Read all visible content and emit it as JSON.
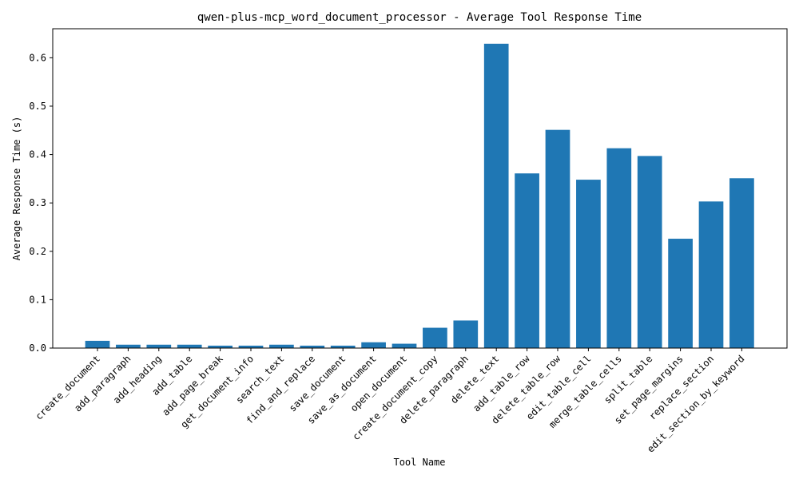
{
  "chart_data": {
    "type": "bar",
    "title": "qwen-plus-mcp_word_document_processor - Average Tool Response Time",
    "xlabel": "Tool Name",
    "ylabel": "Average Response Time (s)",
    "ylim": [
      0,
      0.66
    ],
    "yticks": [
      0.0,
      0.1,
      0.2,
      0.3,
      0.4,
      0.5,
      0.6
    ],
    "ytick_labels": [
      "0.0",
      "0.1",
      "0.2",
      "0.3",
      "0.4",
      "0.5",
      "0.6"
    ],
    "grid": false,
    "bar_color": "#1f77b4",
    "categories": [
      "create_document",
      "add_paragraph",
      "add_heading",
      "add_table",
      "add_page_break",
      "get_document_info",
      "search_text",
      "find_and_replace",
      "save_document",
      "save_as_document",
      "open_document",
      "create_document_copy",
      "delete_paragraph",
      "delete_text",
      "add_table_row",
      "delete_table_row",
      "edit_table_cell",
      "merge_table_cells",
      "split_table",
      "set_page_margins",
      "replace_section",
      "edit_section_by_keyword"
    ],
    "values": [
      0.015,
      0.007,
      0.007,
      0.007,
      0.005,
      0.005,
      0.007,
      0.005,
      0.005,
      0.012,
      0.009,
      0.042,
      0.057,
      0.629,
      0.361,
      0.451,
      0.348,
      0.413,
      0.397,
      0.226,
      0.303,
      0.351
    ]
  }
}
